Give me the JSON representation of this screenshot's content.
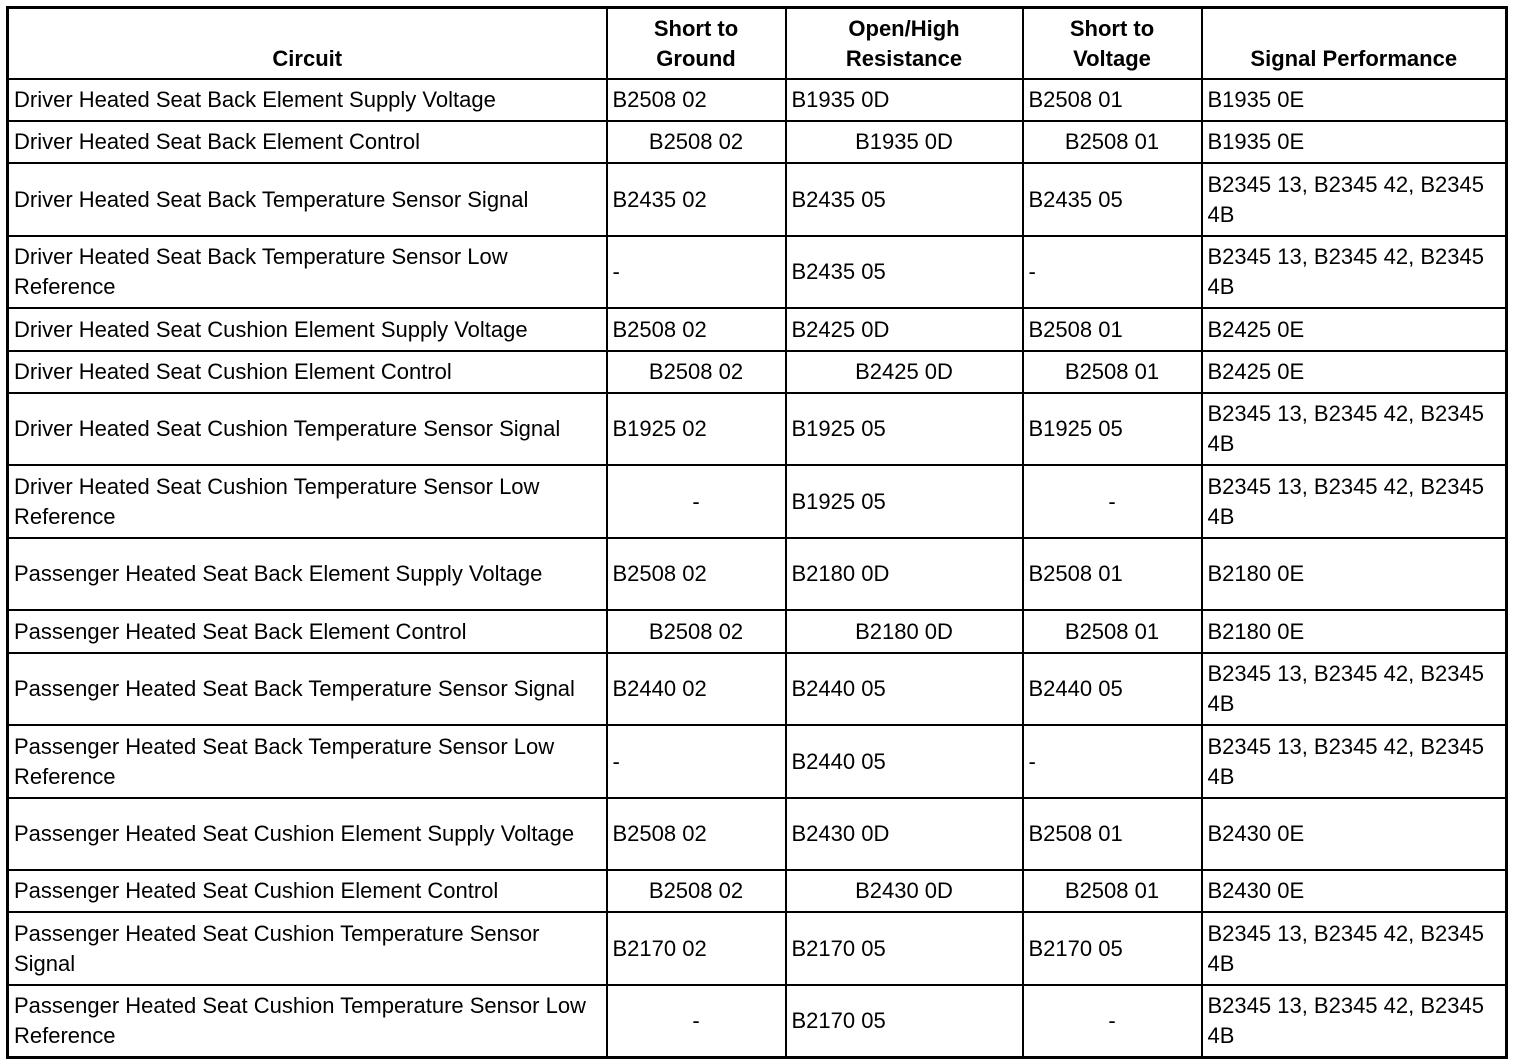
{
  "table": {
    "headers": [
      "Circuit",
      "Short to Ground",
      "Open/High Resistance",
      "Short to Voltage",
      "Signal Performance"
    ],
    "rows": [
      [
        "Driver Heated Seat Back Element Supply Voltage",
        "B2508 02",
        "B1935 0D",
        "B2508 01",
        "B1935 0E"
      ],
      [
        "Driver Heated Seat Back Element Control",
        "B2508 02",
        "B1935 0D",
        "B2508 01",
        "B1935 0E"
      ],
      [
        "Driver Heated Seat Back Temperature Sensor Signal",
        "B2435 02",
        "B2435 05",
        "B2435 05",
        "B2345 13, B2345 42, B2345 4B"
      ],
      [
        "Driver Heated Seat Back Temperature Sensor Low Reference",
        "-",
        "B2435 05",
        "-",
        "B2345 13, B2345 42, B2345 4B"
      ],
      [
        "Driver Heated Seat Cushion Element Supply Voltage",
        "B2508 02",
        "B2425 0D",
        "B2508 01",
        "B2425 0E"
      ],
      [
        "Driver Heated Seat Cushion Element Control",
        "B2508 02",
        "B2425 0D",
        "B2508 01",
        "B2425 0E"
      ],
      [
        "Driver Heated Seat Cushion Temperature Sensor Signal",
        "B1925 02",
        "B1925 05",
        "B1925 05",
        "B2345 13, B2345 42, B2345 4B"
      ],
      [
        "Driver Heated Seat Cushion Temperature Sensor Low Reference",
        "-",
        "B1925 05",
        "-",
        "B2345 13, B2345 42, B2345 4B"
      ],
      [
        "Passenger Heated Seat Back Element Supply Voltage",
        "B2508 02",
        "B2180 0D",
        "B2508 01",
        "B2180 0E"
      ],
      [
        "Passenger Heated Seat Back Element Control",
        "B2508 02",
        "B2180 0D",
        "B2508 01",
        "B2180 0E"
      ],
      [
        "Passenger Heated Seat Back Temperature Sensor Signal",
        "B2440 02",
        "B2440 05",
        "B2440 05",
        "B2345 13, B2345 42, B2345 4B"
      ],
      [
        "Passenger Heated Seat Back Temperature Sensor Low Reference",
        "-",
        "B2440 05",
        "-",
        "B2345 13, B2345 42, B2345 4B"
      ],
      [
        "Passenger Heated Seat Cushion Element Supply Voltage",
        "B2508 02",
        "B2430 0D",
        "B2508 01",
        "B2430 0E"
      ],
      [
        "Passenger Heated Seat Cushion Element Control",
        "B2508 02",
        "B2430 0D",
        "B2508 01",
        "B2430 0E"
      ],
      [
        "Passenger Heated Seat Cushion Temperature Sensor Signal",
        "B2170 02",
        "B2170 05",
        "B2170 05",
        "B2345 13, B2345 42, B2345 4B"
      ],
      [
        "Passenger Heated Seat Cushion Temperature Sensor Low Reference",
        "-",
        "B2170 05",
        "-",
        "B2345 13, B2345 42, B2345 4B"
      ]
    ]
  }
}
